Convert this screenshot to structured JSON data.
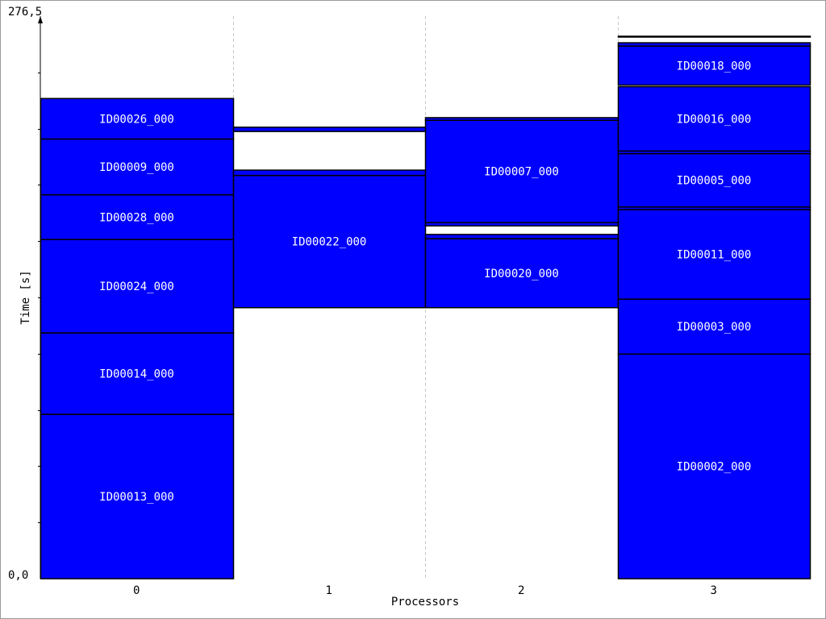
{
  "chart_data": {
    "type": "bar",
    "stacked": true,
    "xlabel": "Processors",
    "ylabel": "Time [s]",
    "categories": [
      "0",
      "1",
      "2",
      "3"
    ],
    "ylim": [
      0,
      276.5
    ],
    "ytick_labels": {
      "max": "276,5",
      "min": "0,0"
    },
    "grid": "vertical dashed",
    "bar_color": "#0000ff",
    "tasks": [
      {
        "processor": "0",
        "label": "ID00013_000",
        "start": 0.0,
        "end": 80.8
      },
      {
        "processor": "0",
        "label": "ID00014_000",
        "start": 80.8,
        "end": 120.8
      },
      {
        "processor": "0",
        "label": "ID00024_000",
        "start": 120.8,
        "end": 166.7
      },
      {
        "processor": "0",
        "label": "ID00028_000",
        "start": 166.7,
        "end": 188.7
      },
      {
        "processor": "0",
        "label": "ID00009_000",
        "start": 188.7,
        "end": 216.1
      },
      {
        "processor": "0",
        "label": "ID00026_000",
        "start": 216.1,
        "end": 236.0
      },
      {
        "processor": "1",
        "label": "ID00022_000",
        "start": 133.2,
        "end": 198.2
      },
      {
        "processor": "1",
        "label": "",
        "start": 198.2,
        "end": 200.8
      },
      {
        "processor": "1",
        "label": "",
        "start": 219.8,
        "end": 221.9
      },
      {
        "processor": "2",
        "label": "ID00020_000",
        "start": 133.2,
        "end": 167.1
      },
      {
        "processor": "2",
        "label": "",
        "start": 167.1,
        "end": 169.2
      },
      {
        "processor": "2",
        "label": "",
        "start": 173.4,
        "end": 175.0
      },
      {
        "processor": "2",
        "label": "ID00007_000",
        "start": 175.0,
        "end": 225.3
      },
      {
        "processor": "2",
        "label": "",
        "start": 225.3,
        "end": 226.6
      },
      {
        "processor": "3",
        "label": "ID00002_000",
        "start": 0.0,
        "end": 110.4
      },
      {
        "processor": "3",
        "label": "ID00003_000",
        "start": 110.4,
        "end": 137.4
      },
      {
        "processor": "3",
        "label": "ID00011_000",
        "start": 137.4,
        "end": 181.4
      },
      {
        "processor": "3",
        "label": "",
        "start": 181.4,
        "end": 182.7
      },
      {
        "processor": "3",
        "label": "ID00005_000",
        "start": 182.7,
        "end": 208.9
      },
      {
        "processor": "3",
        "label": "",
        "start": 208.9,
        "end": 210.2
      },
      {
        "processor": "3",
        "label": "ID00016_000",
        "start": 210.2,
        "end": 241.8
      },
      {
        "processor": "3",
        "label": "ID00018_000",
        "start": 242.6,
        "end": 261.8
      },
      {
        "processor": "3",
        "label": "",
        "start": 261.8,
        "end": 263.4
      },
      {
        "processor": "3",
        "label": "",
        "start": 266.6,
        "end": 266.6
      }
    ]
  }
}
